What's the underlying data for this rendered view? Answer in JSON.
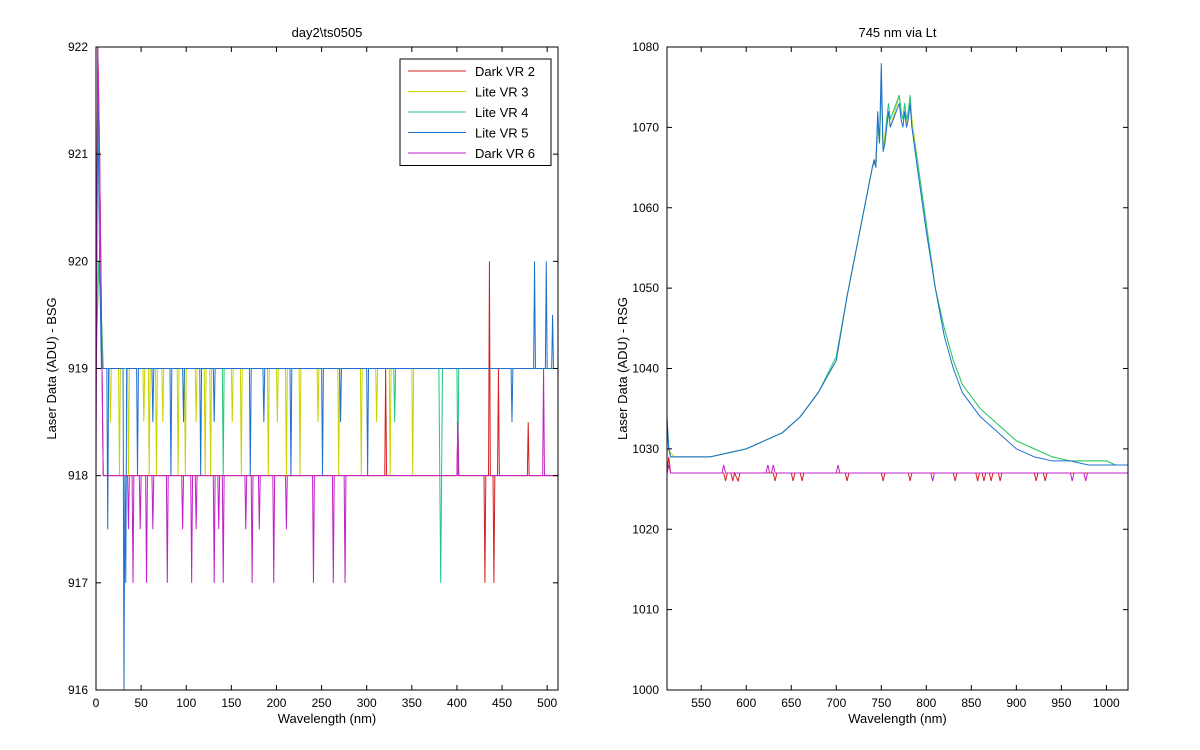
{
  "chart_data": [
    {
      "type": "line",
      "title": "day2\\ts0505",
      "xlabel": "Wavelength (nm)",
      "ylabel": "Laser Data (ADU) - BSG",
      "xlim": [
        0,
        512
      ],
      "ylim": [
        916,
        922
      ],
      "xticks": [
        0,
        50,
        100,
        150,
        200,
        250,
        300,
        350,
        400,
        450,
        500
      ],
      "yticks": [
        916,
        917,
        918,
        919,
        920,
        921,
        922
      ],
      "legend_position": "top-right",
      "series": [
        {
          "name": "Dark VR 2",
          "color": "#d62020",
          "x": [
            0,
            2,
            4,
            6,
            8,
            10,
            30,
            320,
            321,
            322,
            400,
            401,
            402,
            430,
            431,
            432,
            435,
            436,
            437,
            440,
            441,
            442,
            445,
            446,
            447,
            478,
            479,
            480,
            512
          ],
          "y": [
            919,
            922,
            921,
            919.5,
            918,
            918,
            918,
            918,
            919,
            918,
            918,
            918.5,
            918,
            918,
            917,
            918,
            918,
            920,
            918,
            918,
            917,
            918,
            918,
            919,
            918,
            918,
            918.5,
            918,
            918
          ]
        },
        {
          "name": "Lite VR 3",
          "color": "#c8d400",
          "x": [
            0,
            3,
            6,
            8,
            15,
            16,
            17,
            25,
            26,
            27,
            35,
            36,
            37,
            52,
            53,
            54,
            58,
            59,
            60,
            66,
            67,
            68,
            73,
            74,
            75,
            90,
            91,
            92,
            98,
            99,
            100,
            110,
            111,
            112,
            120,
            121,
            122,
            126,
            127,
            128,
            150,
            151,
            152,
            160,
            161,
            162,
            190,
            191,
            192,
            200,
            201,
            202,
            210,
            211,
            212,
            225,
            226,
            227,
            245,
            246,
            247,
            268,
            269,
            270,
            293,
            294,
            295,
            310,
            311,
            312,
            325,
            326,
            327,
            350,
            351,
            352,
            512
          ],
          "y": [
            919,
            920,
            919.5,
            919,
            919,
            918.5,
            919,
            919,
            918,
            919,
            919,
            918,
            919,
            919,
            918.5,
            919,
            919,
            918,
            919,
            919,
            918,
            919,
            919,
            918.5,
            919,
            919,
            918,
            919,
            919,
            918,
            919,
            919,
            918.5,
            919,
            919,
            918,
            919,
            919,
            918,
            919,
            919,
            918.5,
            919,
            919,
            918,
            919,
            919,
            918,
            919,
            919,
            918.5,
            919,
            919,
            918,
            919,
            919,
            918,
            919,
            919,
            918.5,
            919,
            919,
            918,
            919,
            919,
            918,
            919,
            919,
            918.5,
            919,
            919,
            918,
            919,
            919,
            918,
            919,
            919
          ]
        },
        {
          "name": "Lite VR 4",
          "color": "#20c880",
          "x": [
            0,
            3,
            6,
            8,
            140,
            141,
            142,
            330,
            331,
            332,
            380,
            381,
            382,
            383,
            384,
            400,
            401,
            402,
            512
          ],
          "y": [
            919,
            920,
            919.5,
            919,
            919,
            918,
            919,
            919,
            918.5,
            919,
            919,
            918,
            917,
            918,
            919,
            919,
            918,
            919,
            919
          ]
        },
        {
          "name": "Lite VR 5",
          "color": "#1f6fd0",
          "x": [
            0,
            2,
            4,
            6,
            8,
            12,
            13,
            14,
            30,
            31,
            32,
            33,
            34,
            45,
            46,
            47,
            62,
            63,
            64,
            82,
            83,
            84,
            96,
            97,
            98,
            115,
            116,
            117,
            130,
            131,
            132,
            170,
            171,
            172,
            185,
            186,
            187,
            215,
            216,
            217,
            250,
            251,
            252,
            270,
            271,
            272,
            300,
            301,
            302,
            460,
            461,
            462,
            485,
            486,
            487,
            498,
            499,
            500,
            505,
            506,
            507,
            512
          ],
          "y": [
            919,
            921.5,
            920,
            919,
            919,
            919,
            917.5,
            919,
            919,
            916,
            918,
            917,
            919,
            919,
            918,
            919,
            919,
            918.5,
            919,
            919,
            918,
            919,
            919,
            918.5,
            919,
            919,
            918,
            919,
            919,
            918.5,
            919,
            919,
            918,
            919,
            919,
            918.5,
            919,
            919,
            918,
            919,
            919,
            918,
            919,
            919,
            918.5,
            919,
            919,
            918,
            919,
            919,
            918.5,
            919,
            919,
            920,
            919,
            919,
            920,
            919,
            919,
            919.5,
            919,
            919
          ]
        },
        {
          "name": "Dark VR 6",
          "color": "#c020c8",
          "x": [
            0,
            2,
            4,
            6,
            8,
            35,
            36,
            37,
            40,
            41,
            42,
            48,
            49,
            50,
            55,
            56,
            57,
            62,
            63,
            64,
            78,
            79,
            80,
            95,
            96,
            97,
            105,
            106,
            107,
            110,
            111,
            112,
            130,
            131,
            132,
            135,
            136,
            137,
            140,
            141,
            142,
            165,
            166,
            167,
            172,
            173,
            174,
            180,
            181,
            182,
            196,
            197,
            198,
            210,
            211,
            212,
            240,
            241,
            242,
            262,
            263,
            264,
            275,
            276,
            277,
            400,
            401,
            402,
            495,
            496,
            497,
            512
          ],
          "y": [
            918,
            922,
            921,
            919.5,
            918,
            918,
            917.5,
            918,
            918,
            917,
            918,
            918,
            917.5,
            918,
            918,
            917,
            918,
            918,
            917.5,
            918,
            918,
            917,
            918,
            918,
            917.5,
            918,
            918,
            917,
            918,
            918,
            917.5,
            918,
            918,
            917,
            918,
            918,
            917.5,
            918,
            918,
            917,
            918,
            918,
            917.5,
            918,
            918,
            917,
            918,
            918,
            917.5,
            918,
            918,
            917,
            918,
            918,
            917.5,
            918,
            918,
            917,
            918,
            918,
            917,
            918,
            918,
            917,
            918,
            918,
            918.5,
            918,
            918,
            919,
            918,
            918
          ]
        }
      ]
    },
    {
      "type": "line",
      "title": "745 nm via Lt",
      "xlabel": "Wavelength (nm)",
      "ylabel": "Laser Data (ADU) - RSG",
      "xlim": [
        512,
        1024
      ],
      "ylim": [
        1000,
        1080
      ],
      "xticks": [
        550,
        600,
        650,
        700,
        750,
        800,
        850,
        900,
        950,
        1000
      ],
      "yticks": [
        1000,
        1010,
        1020,
        1030,
        1040,
        1050,
        1060,
        1070,
        1080
      ],
      "series": [
        {
          "name": "Dark VR 2",
          "color": "#d62020",
          "x": [
            512,
            514,
            516,
            518,
            575,
            577,
            579,
            583,
            585,
            587,
            591,
            593,
            630,
            632,
            634,
            650,
            652,
            654,
            660,
            662,
            664,
            710,
            712,
            714,
            750,
            752,
            754,
            780,
            782,
            784,
            830,
            832,
            834,
            855,
            857,
            859,
            862,
            864,
            866,
            870,
            872,
            874,
            880,
            882,
            884,
            920,
            922,
            924,
            930,
            932,
            934,
            1024
          ],
          "y": [
            1027,
            1029,
            1027,
            1027,
            1027,
            1026,
            1027,
            1027,
            1026,
            1027,
            1026,
            1027,
            1027,
            1026,
            1027,
            1027,
            1026,
            1027,
            1027,
            1026,
            1027,
            1027,
            1026,
            1027,
            1027,
            1026,
            1027,
            1027,
            1026,
            1027,
            1027,
            1026,
            1027,
            1027,
            1026,
            1027,
            1027,
            1026,
            1027,
            1027,
            1026,
            1027,
            1027,
            1026,
            1027,
            1027,
            1026,
            1027,
            1027,
            1026,
            1027,
            1027
          ]
        },
        {
          "name": "Dark VR 6",
          "color": "#c020c8",
          "x": [
            512,
            514,
            516,
            518,
            573,
            575,
            577,
            622,
            624,
            626,
            628,
            630,
            632,
            700,
            702,
            704,
            805,
            807,
            809,
            960,
            962,
            964,
            975,
            977,
            979,
            1024
          ],
          "y": [
            1027,
            1028,
            1027,
            1027,
            1027,
            1028,
            1027,
            1027,
            1028,
            1027,
            1027,
            1028,
            1027,
            1027,
            1028,
            1027,
            1027,
            1026,
            1027,
            1027,
            1026,
            1027,
            1027,
            1026,
            1027,
            1027
          ]
        },
        {
          "name": "Lite VR 3",
          "color": "#c8d400",
          "x": [
            512,
            514,
            516,
            520,
            540,
            560,
            580,
            600,
            620,
            640,
            660,
            680,
            700,
            712,
            740,
            742,
            744,
            746,
            748,
            750,
            752,
            754,
            756,
            758,
            760,
            770,
            772,
            774,
            776,
            778,
            780,
            782,
            784,
            790,
            800,
            810,
            820,
            830,
            840,
            860,
            880,
            900,
            920,
            940,
            960,
            980,
            1000,
            1010,
            1024
          ],
          "y": [
            1032,
            1030,
            1029.5,
            1029,
            1029,
            1029,
            1029.5,
            1030,
            1031,
            1032,
            1034,
            1037,
            1041,
            1049,
            1065,
            1066,
            1065,
            1070,
            1068,
            1075,
            1067,
            1069,
            1071,
            1072,
            1070,
            1074,
            1072,
            1071,
            1073,
            1070,
            1072,
            1074,
            1071,
            1066,
            1058,
            1050,
            1045,
            1041,
            1038,
            1035,
            1033,
            1031,
            1030,
            1029,
            1028.5,
            1028.5,
            1028.5,
            1028,
            1028
          ]
        },
        {
          "name": "Lite VR 4",
          "color": "#20c880",
          "x": [
            512,
            514,
            516,
            520,
            540,
            560,
            580,
            600,
            620,
            640,
            660,
            680,
            700,
            712,
            740,
            742,
            744,
            746,
            748,
            750,
            752,
            754,
            756,
            758,
            760,
            770,
            772,
            774,
            776,
            778,
            780,
            782,
            784,
            790,
            800,
            810,
            820,
            830,
            840,
            860,
            880,
            900,
            920,
            940,
            960,
            980,
            1000,
            1010,
            1024
          ],
          "y": [
            1033,
            1030,
            1029,
            1029,
            1029,
            1029,
            1029.5,
            1030,
            1031,
            1032,
            1034,
            1037,
            1041.5,
            1049,
            1065,
            1065.5,
            1066,
            1071,
            1068,
            1076,
            1067,
            1068,
            1071,
            1073,
            1071,
            1074,
            1072,
            1071,
            1073,
            1071,
            1072,
            1074,
            1070,
            1066,
            1058,
            1050,
            1045,
            1041,
            1038,
            1035,
            1033,
            1031,
            1030,
            1029,
            1028.5,
            1028.5,
            1028.5,
            1028,
            1028
          ]
        },
        {
          "name": "Lite VR 5",
          "color": "#1f6fd0",
          "x": [
            512,
            514,
            516,
            520,
            540,
            560,
            580,
            600,
            620,
            640,
            660,
            680,
            700,
            712,
            740,
            742,
            744,
            746,
            748,
            750,
            752,
            754,
            756,
            758,
            760,
            770,
            772,
            774,
            776,
            778,
            780,
            782,
            784,
            790,
            800,
            810,
            820,
            830,
            840,
            860,
            880,
            900,
            920,
            940,
            960,
            980,
            1000,
            1010,
            1024
          ],
          "y": [
            1034,
            1030,
            1029,
            1029,
            1029,
            1029,
            1029.5,
            1030,
            1031,
            1032,
            1034,
            1037,
            1041,
            1049,
            1065,
            1066,
            1065,
            1072,
            1068,
            1078,
            1067,
            1068,
            1070,
            1072,
            1070,
            1073,
            1071,
            1070,
            1072,
            1070,
            1071,
            1073,
            1070,
            1065,
            1057,
            1050,
            1044,
            1040,
            1037,
            1034,
            1032,
            1030,
            1029,
            1028.5,
            1028.5,
            1028,
            1028,
            1028,
            1028
          ]
        }
      ]
    }
  ]
}
